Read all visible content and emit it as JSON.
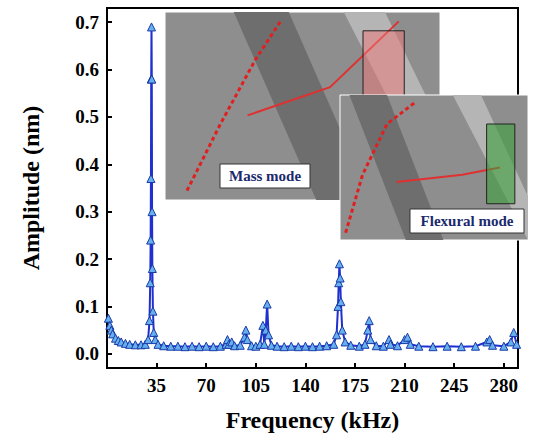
{
  "chart_data": {
    "type": "line",
    "x_label": "Frequency (kHz)",
    "y_label": "Amplitude (nm)",
    "annotations": [
      "Mass mode",
      "Flexural mode"
    ],
    "color": "#1f2fd0",
    "marker": "triangle",
    "grid": false,
    "xlim": [
      0,
      290
    ],
    "xticks": [
      35,
      70,
      105,
      140,
      175,
      210,
      245,
      280
    ],
    "ylim": [
      -0.03,
      0.73
    ],
    "yticks": [
      {
        "value": 0,
        "label": "0.0"
      },
      0.1,
      0.2,
      0.3,
      0.4,
      0.5,
      0.6,
      0.7
    ],
    "x": [
      1,
      2,
      3,
      4,
      6,
      8,
      10,
      13,
      16,
      20,
      24,
      27,
      29,
      30,
      30.5,
      30.8,
      31,
      31.2,
      31.4,
      31.6,
      31.8,
      32,
      32.4,
      33,
      34,
      36,
      40,
      45,
      50,
      55,
      60,
      65,
      70,
      75,
      80,
      84,
      85,
      86,
      88,
      90,
      94,
      97,
      98,
      99,
      102,
      105,
      108,
      110,
      111,
      112,
      113,
      114,
      116,
      120,
      125,
      130,
      135,
      140,
      145,
      150,
      155,
      160,
      162,
      163,
      163.5,
      164,
      164.5,
      165,
      166,
      168,
      172,
      178,
      182,
      184,
      185,
      186,
      190,
      195,
      199,
      200,
      205,
      210,
      212,
      214,
      220,
      230,
      240,
      250,
      260,
      268,
      270,
      272,
      280,
      285,
      287,
      289
    ],
    "values": [
      0.075,
      0.06,
      0.05,
      0.042,
      0.033,
      0.028,
      0.025,
      0.022,
      0.02,
      0.019,
      0.019,
      0.02,
      0.03,
      0.07,
      0.15,
      0.24,
      0.37,
      0.58,
      0.69,
      0.58,
      0.3,
      0.18,
      0.09,
      0.045,
      0.03,
      0.02,
      0.017,
      0.016,
      0.016,
      0.015,
      0.016,
      0.015,
      0.016,
      0.015,
      0.016,
      0.02,
      0.03,
      0.02,
      0.025,
      0.017,
      0.018,
      0.035,
      0.05,
      0.03,
      0.017,
      0.016,
      0.02,
      0.06,
      0.02,
      0.05,
      0.105,
      0.04,
      0.018,
      0.016,
      0.015,
      0.016,
      0.015,
      0.016,
      0.015,
      0.016,
      0.017,
      0.02,
      0.04,
      0.1,
      0.15,
      0.19,
      0.16,
      0.11,
      0.05,
      0.025,
      0.018,
      0.016,
      0.02,
      0.05,
      0.07,
      0.03,
      0.017,
      0.016,
      0.03,
      0.02,
      0.017,
      0.03,
      0.035,
      0.02,
      0.016,
      0.015,
      0.016,
      0.015,
      0.016,
      0.025,
      0.03,
      0.018,
      0.016,
      0.025,
      0.045,
      0.02
    ]
  }
}
